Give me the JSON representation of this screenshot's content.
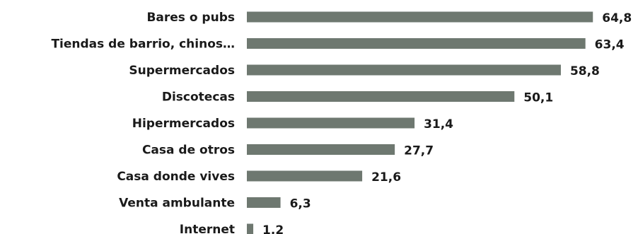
{
  "chart_data": {
    "type": "bar",
    "orientation": "horizontal",
    "categories": [
      "Bares o pubs",
      "Tiendas de barrio, chinos…",
      "Supermercados",
      "Discotecas",
      "Hipermercados",
      "Casa de otros",
      "Casa donde vives",
      "Venta ambulante",
      "Internet"
    ],
    "values": [
      64.8,
      63.4,
      58.8,
      50.1,
      31.4,
      27.7,
      21.6,
      6.3,
      1.2
    ],
    "value_labels": [
      "64,8",
      "63,4",
      "58,8",
      "50,1",
      "31,4",
      "27,7",
      "21,6",
      "6,3",
      "1,2"
    ],
    "bar_color": "#6e7870",
    "title": "",
    "xlabel": "",
    "ylabel": "",
    "grid": false
  }
}
